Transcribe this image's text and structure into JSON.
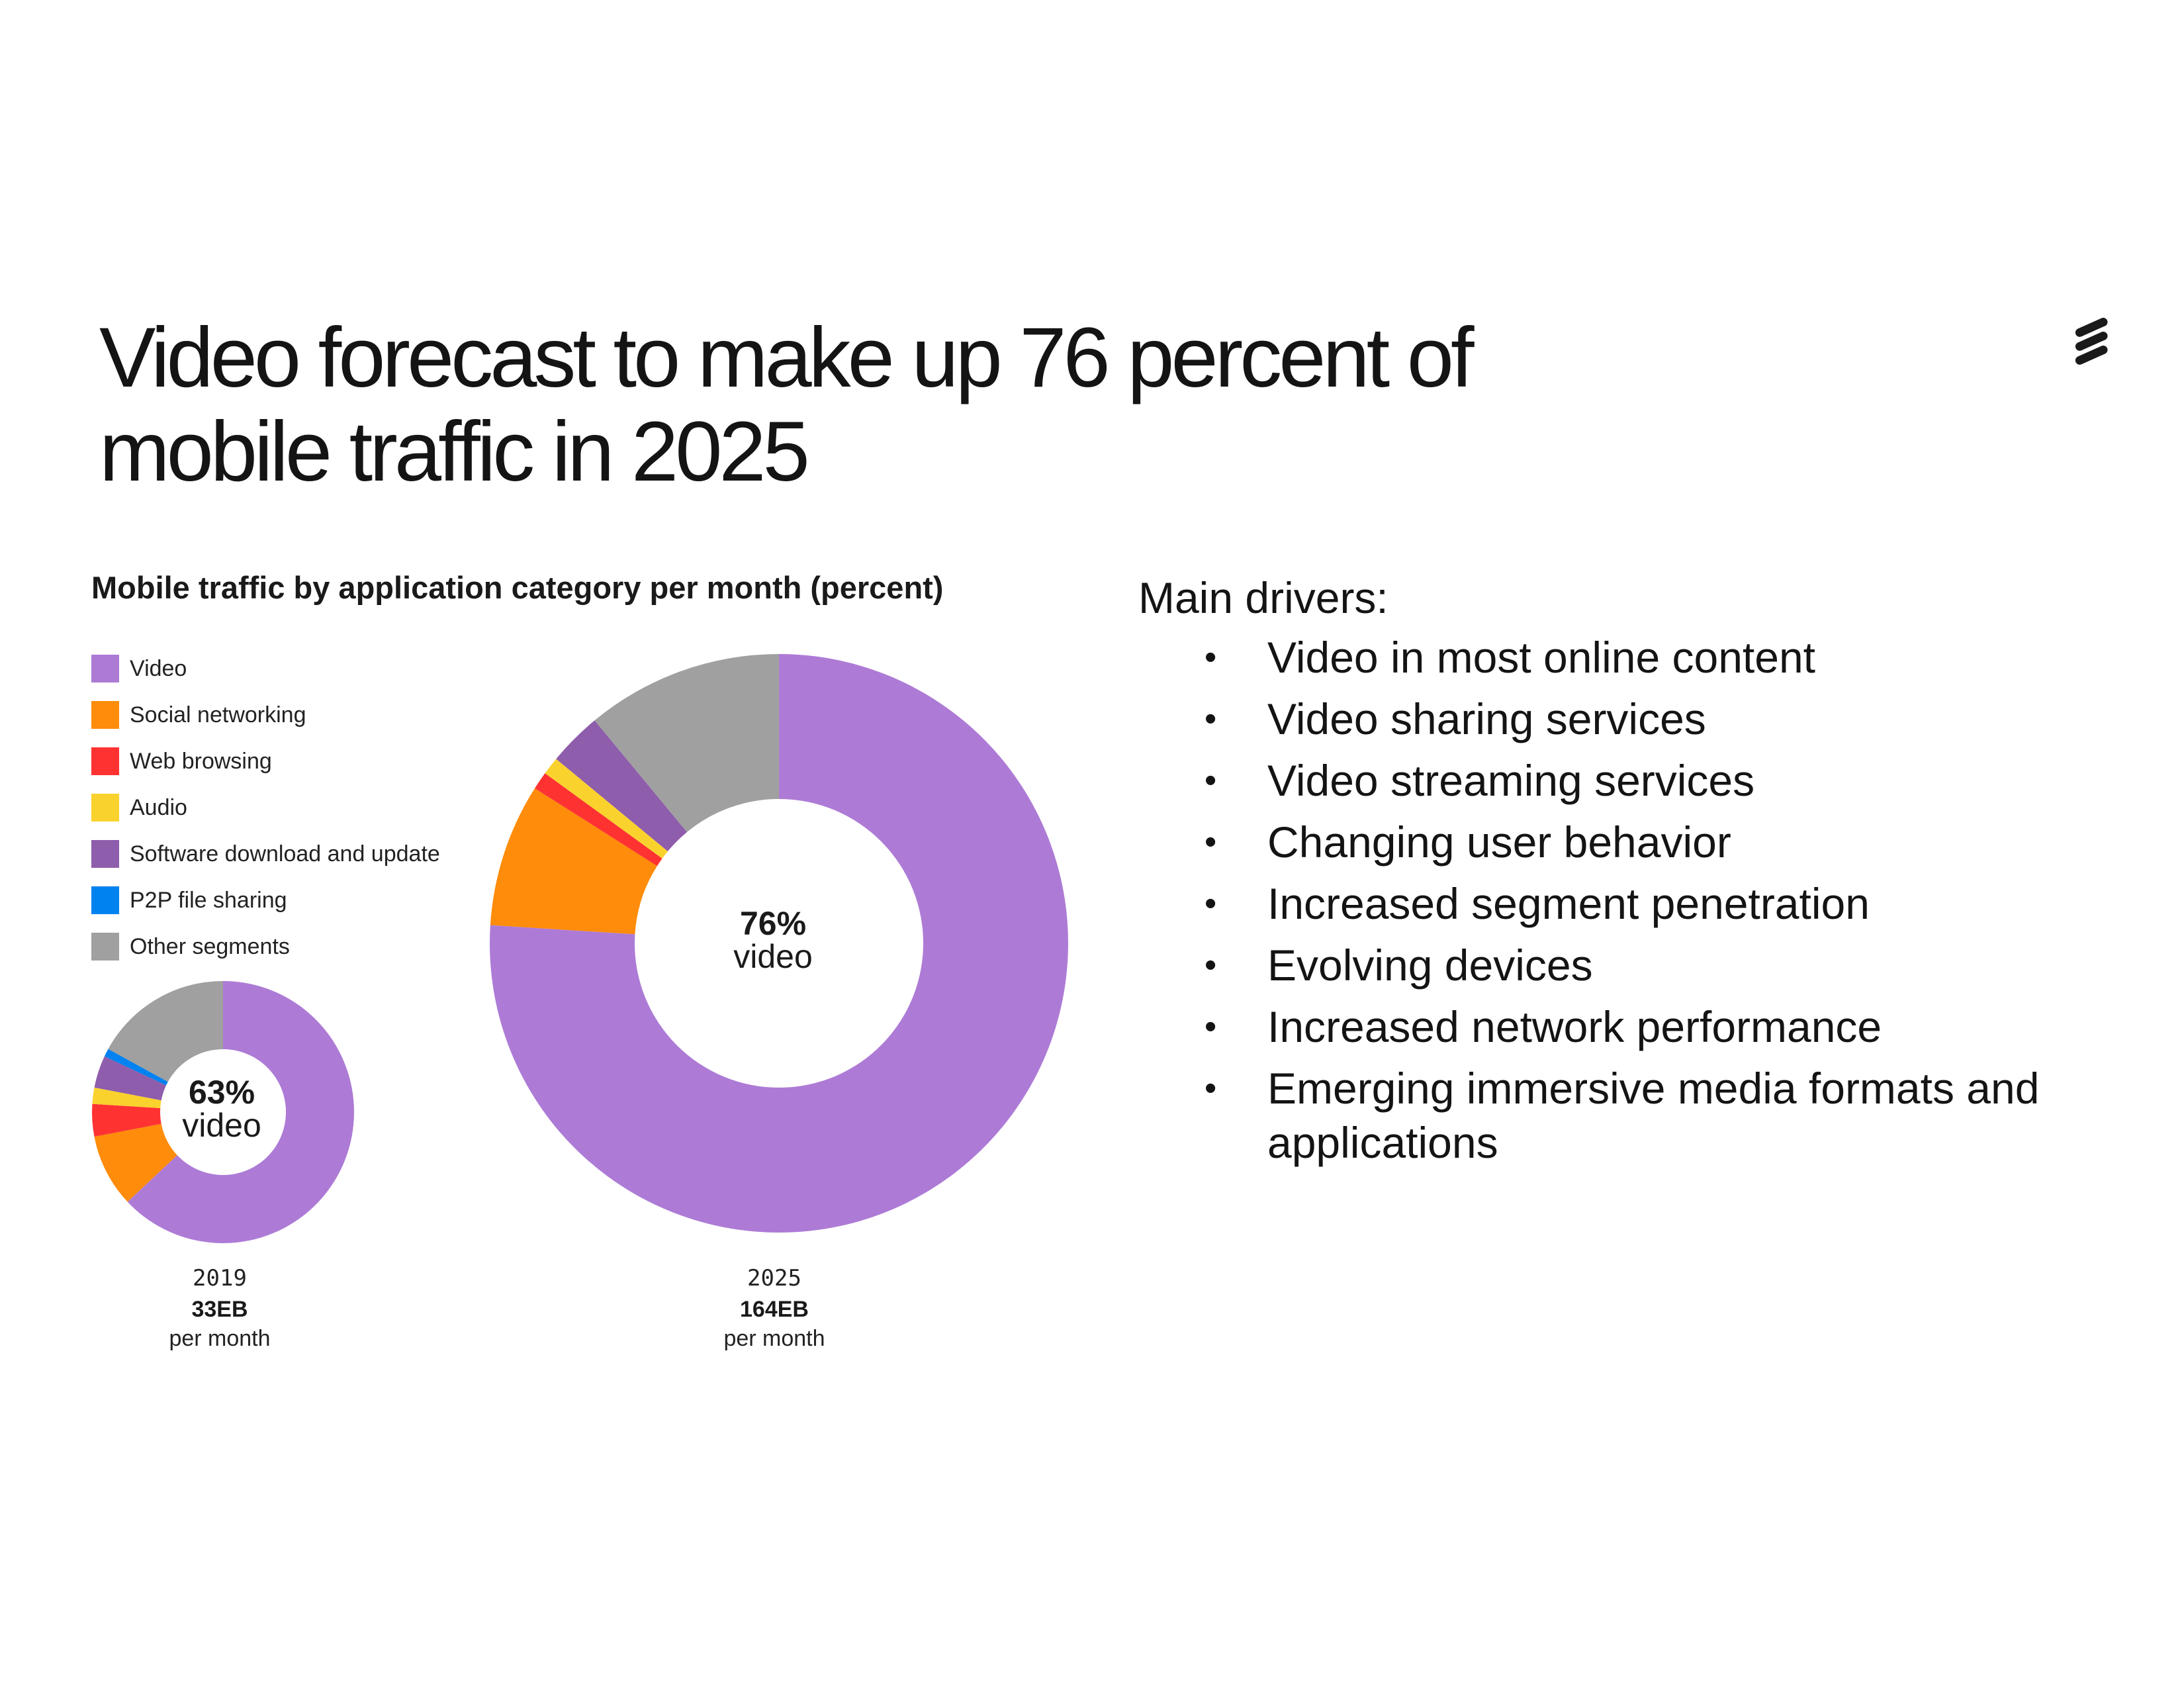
{
  "slide": {
    "title_line1": "Video forecast to make up 76 percent of",
    "title_line2": "mobile traffic in 2025",
    "logo_icon": "ericsson-logo-icon"
  },
  "drivers": {
    "heading": "Main drivers:",
    "items": [
      "Video in most online content",
      "Video sharing services",
      "Video streaming services",
      "Changing user behavior",
      "Increased segment penetration",
      "Evolving devices",
      "Increased network performance",
      "Emerging immersive media formats and applications"
    ]
  },
  "chart_data": [
    {
      "type": "donut",
      "title": "Mobile traffic by application category per month (percent)",
      "year": "2019",
      "volume": "33EB",
      "volume_unit": "per month",
      "center_value": "63%",
      "center_label": "video",
      "legend": "left",
      "series": [
        {
          "name": "Video",
          "value": 63,
          "color": "#ad7bd6"
        },
        {
          "name": "Social networking",
          "value": 9,
          "color": "#ff8c0a"
        },
        {
          "name": "Web browsing",
          "value": 4,
          "color": "#ff3232"
        },
        {
          "name": "Audio",
          "value": 2,
          "color": "#fad22d"
        },
        {
          "name": "Software download and update",
          "value": 4,
          "color": "#8e5dac"
        },
        {
          "name": "P2P file sharing",
          "value": 1,
          "color": "#0082f0"
        },
        {
          "name": "Other segments",
          "value": 17,
          "color": "#a0a0a0"
        }
      ]
    },
    {
      "type": "donut",
      "year": "2025",
      "volume": "164EB",
      "volume_unit": "per month",
      "center_value": "76%",
      "center_label": "video",
      "series": [
        {
          "name": "Video",
          "value": 76,
          "color": "#ad7bd6"
        },
        {
          "name": "Social networking",
          "value": 8,
          "color": "#ff8c0a"
        },
        {
          "name": "Web browsing",
          "value": 1,
          "color": "#ff3232"
        },
        {
          "name": "Audio",
          "value": 1,
          "color": "#fad22d"
        },
        {
          "name": "Software download and update",
          "value": 3,
          "color": "#8e5dac"
        },
        {
          "name": "P2P file sharing",
          "value": 0,
          "color": "#0082f0"
        },
        {
          "name": "Other segments",
          "value": 11,
          "color": "#a0a0a0"
        }
      ]
    }
  ]
}
